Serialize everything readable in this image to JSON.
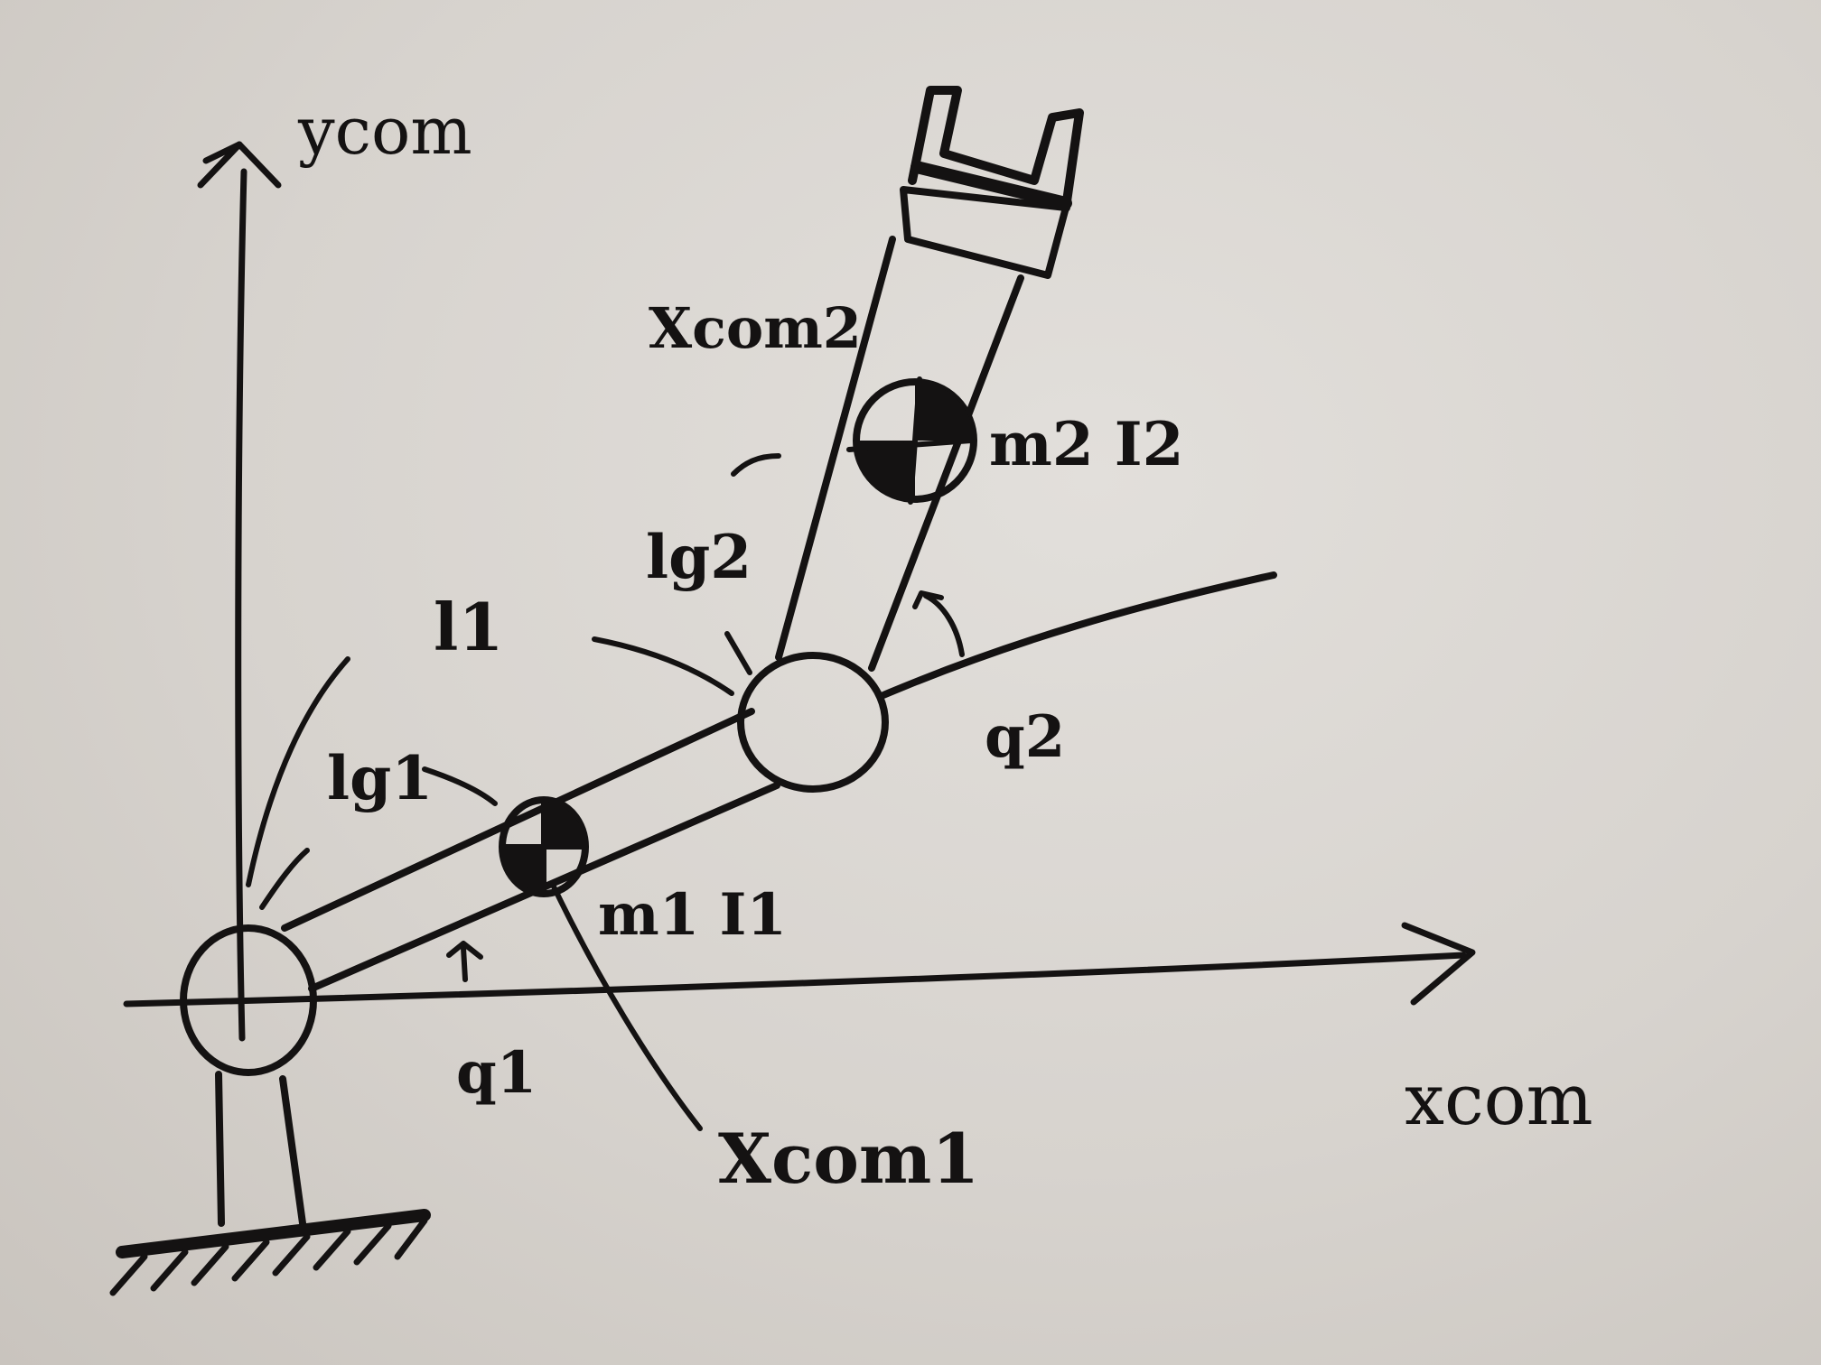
{
  "labels": {
    "y_axis": "ycom",
    "x_axis": "xcom",
    "link1_com_frame": "Xcom1",
    "link2_com_frame": "Xcom2",
    "link1_length": "l1",
    "link1_com_distance": "lg1",
    "link2_com_distance": "lg2",
    "link1_mass_inertia": "m1 I1",
    "link2_mass_inertia": "m2 I2",
    "joint1_angle": "q1",
    "joint2_angle": "q2"
  },
  "colors": {
    "ink": "#141212",
    "paper": "#d6d2cd"
  }
}
